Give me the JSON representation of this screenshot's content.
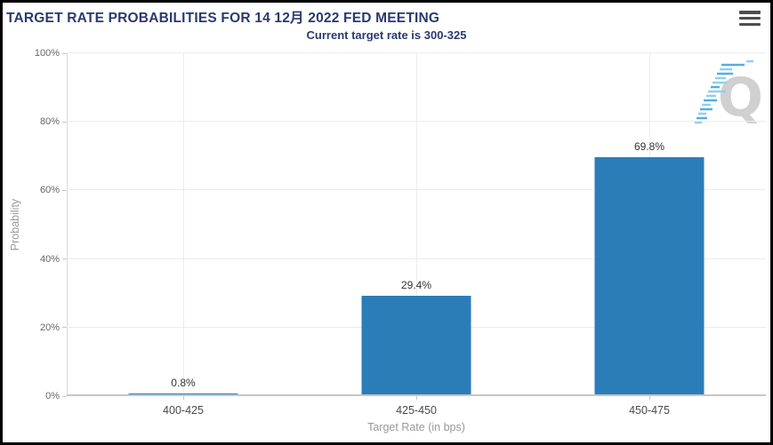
{
  "header": {
    "title": "TARGET RATE PROBABILITIES FOR 14 12月 2022 FED MEETING",
    "subtitle": "Current target rate is 300-325"
  },
  "menu": {
    "icon": "hamburger-icon"
  },
  "watermark": {
    "letter": "Q"
  },
  "chart_data": {
    "type": "bar",
    "title": "TARGET RATE PROBABILITIES FOR 14 12月 2022 FED MEETING",
    "subtitle": "Current target rate is 300-325",
    "categories": [
      "400-425",
      "425-450",
      "450-475"
    ],
    "values": [
      0.8,
      29.4,
      69.8
    ],
    "value_labels": [
      "0.8%",
      "29.4%",
      "69.8%"
    ],
    "xlabel": "Target Rate (in bps)",
    "ylabel": "Probability",
    "ylim": [
      0,
      100
    ],
    "yticks": [
      0,
      20,
      40,
      60,
      80,
      100
    ],
    "ytick_labels": [
      "0%",
      "20%",
      "40%",
      "60%",
      "80%",
      "100%"
    ],
    "grid": true,
    "legend": false,
    "bar_color": "#2b7db8"
  },
  "colors": {
    "title_text": "#293a6f",
    "bar": "#2b7db8",
    "axis_line": "#c6c6c6",
    "gridline": "#ececec",
    "ytick_text": "#666666",
    "xtick_text": "#4a4a4a",
    "axis_title_text": "#999999",
    "value_label_text": "#333333",
    "menu_icon": "#4d4d4d",
    "watermark_gray": "#d0d0d0",
    "watermark_blue_light": "#8fd0ec",
    "watermark_blue_dark": "#55aede"
  }
}
